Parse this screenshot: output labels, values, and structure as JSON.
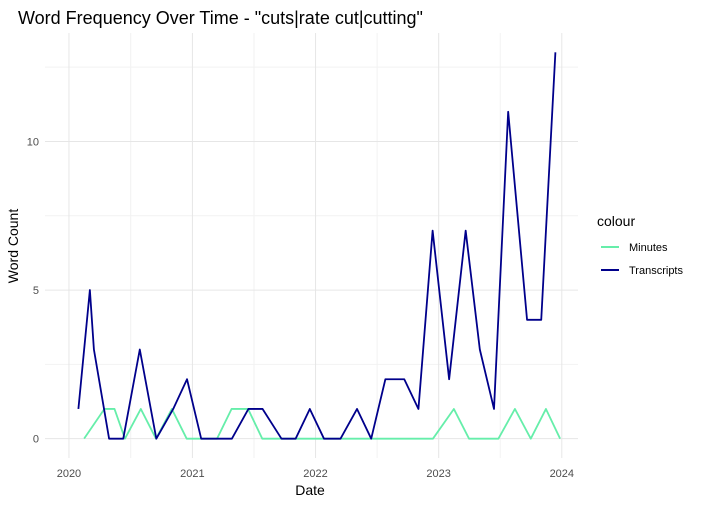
{
  "chart_data": {
    "type": "line",
    "title": "Word Frequency Over Time - \"cuts|rate cut|cutting\"",
    "xlabel": "Date",
    "ylabel": "Word Count",
    "xlim": [
      "2019-10-22",
      "2024-02-18"
    ],
    "ylim": [
      -0.65,
      13.65
    ],
    "x_ticks": [
      {
        "label": "2020",
        "value": "2020-01-01"
      },
      {
        "label": "2021",
        "value": "2021-01-01"
      },
      {
        "label": "2022",
        "value": "2022-01-01"
      },
      {
        "label": "2023",
        "value": "2023-01-01"
      },
      {
        "label": "2024",
        "value": "2024-01-01"
      }
    ],
    "y_ticks": [
      0,
      5,
      10
    ],
    "grid": true,
    "legend": {
      "title": "colour",
      "position": "right"
    },
    "series": [
      {
        "name": "Minutes",
        "color": "#66EEAA",
        "points": [
          {
            "x": "2020-02-15",
            "y": 0
          },
          {
            "x": "2020-04-15",
            "y": 1
          },
          {
            "x": "2020-05-15",
            "y": 1
          },
          {
            "x": "2020-06-15",
            "y": 0
          },
          {
            "x": "2020-08-01",
            "y": 1
          },
          {
            "x": "2020-09-15",
            "y": 0
          },
          {
            "x": "2020-11-01",
            "y": 1
          },
          {
            "x": "2020-12-15",
            "y": 0
          },
          {
            "x": "2021-02-01",
            "y": 0
          },
          {
            "x": "2021-03-15",
            "y": 0
          },
          {
            "x": "2021-04-27",
            "y": 1
          },
          {
            "x": "2021-06-15",
            "y": 1
          },
          {
            "x": "2021-07-27",
            "y": 0
          },
          {
            "x": "2021-09-15",
            "y": 0
          },
          {
            "x": "2021-11-01",
            "y": 0
          },
          {
            "x": "2021-12-15",
            "y": 0
          },
          {
            "x": "2022-02-01",
            "y": 0
          },
          {
            "x": "2022-03-15",
            "y": 0
          },
          {
            "x": "2022-05-01",
            "y": 0
          },
          {
            "x": "2022-06-15",
            "y": 0
          },
          {
            "x": "2022-07-27",
            "y": 0
          },
          {
            "x": "2022-09-15",
            "y": 0
          },
          {
            "x": "2022-11-01",
            "y": 0
          },
          {
            "x": "2022-12-15",
            "y": 0
          },
          {
            "x": "2023-02-15",
            "y": 1
          },
          {
            "x": "2023-04-01",
            "y": 0
          },
          {
            "x": "2023-05-15",
            "y": 0
          },
          {
            "x": "2023-06-27",
            "y": 0
          },
          {
            "x": "2023-08-15",
            "y": 1
          },
          {
            "x": "2023-10-01",
            "y": 0
          },
          {
            "x": "2023-11-15",
            "y": 1
          },
          {
            "x": "2023-12-27",
            "y": 0
          }
        ]
      },
      {
        "name": "Transcripts",
        "color": "#00008B",
        "points": [
          {
            "x": "2020-01-29",
            "y": 1
          },
          {
            "x": "2020-03-03",
            "y": 5
          },
          {
            "x": "2020-03-15",
            "y": 3
          },
          {
            "x": "2020-04-29",
            "y": 0
          },
          {
            "x": "2020-06-10",
            "y": 0
          },
          {
            "x": "2020-07-29",
            "y": 3
          },
          {
            "x": "2020-09-16",
            "y": 0
          },
          {
            "x": "2020-11-05",
            "y": 1
          },
          {
            "x": "2020-12-16",
            "y": 2
          },
          {
            "x": "2021-01-27",
            "y": 0
          },
          {
            "x": "2021-03-17",
            "y": 0
          },
          {
            "x": "2021-04-28",
            "y": 0
          },
          {
            "x": "2021-06-16",
            "y": 1
          },
          {
            "x": "2021-07-28",
            "y": 1
          },
          {
            "x": "2021-09-22",
            "y": 0
          },
          {
            "x": "2021-11-03",
            "y": 0
          },
          {
            "x": "2021-12-15",
            "y": 1
          },
          {
            "x": "2022-01-26",
            "y": 0
          },
          {
            "x": "2022-03-16",
            "y": 0
          },
          {
            "x": "2022-05-04",
            "y": 1
          },
          {
            "x": "2022-06-15",
            "y": 0
          },
          {
            "x": "2022-07-27",
            "y": 2
          },
          {
            "x": "2022-09-21",
            "y": 2
          },
          {
            "x": "2022-11-02",
            "y": 1
          },
          {
            "x": "2022-12-14",
            "y": 7
          },
          {
            "x": "2023-02-01",
            "y": 2
          },
          {
            "x": "2023-03-22",
            "y": 7
          },
          {
            "x": "2023-05-03",
            "y": 3
          },
          {
            "x": "2023-06-14",
            "y": 1
          },
          {
            "x": "2023-07-26",
            "y": 11
          },
          {
            "x": "2023-09-20",
            "y": 4
          },
          {
            "x": "2023-11-01",
            "y": 4
          },
          {
            "x": "2023-12-13",
            "y": 13
          }
        ]
      }
    ]
  }
}
